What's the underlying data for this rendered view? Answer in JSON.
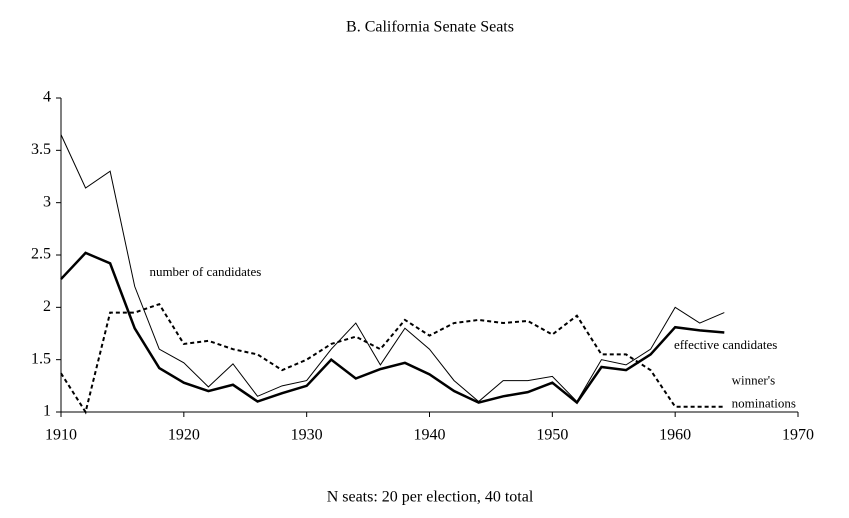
{
  "chart_data": {
    "type": "line",
    "title": "B. California Senate Seats",
    "x_label": "N seats: 20 per election, 40 total",
    "x": [
      1910,
      1912,
      1914,
      1916,
      1918,
      1920,
      1922,
      1924,
      1926,
      1928,
      1930,
      1932,
      1934,
      1936,
      1938,
      1940,
      1942,
      1944,
      1946,
      1948,
      1950,
      1952,
      1954,
      1956,
      1958,
      1960,
      1962,
      1964
    ],
    "series": [
      {
        "color": "#000000",
        "width": 1,
        "dash": "none",
        "values": [
          3.65,
          3.14,
          3.3,
          2.2,
          1.6,
          1.47,
          1.24,
          1.46,
          1.15,
          1.25,
          1.3,
          1.6,
          1.85,
          1.45,
          1.8,
          1.6,
          1.3,
          1.1,
          1.3,
          1.3,
          1.34,
          1.1,
          1.5,
          1.45,
          1.6,
          2.0,
          1.85,
          1.95
        ]
      },
      {
        "color": "#000000",
        "width": 2.5,
        "dash": "none",
        "values": [
          2.27,
          2.52,
          2.42,
          1.8,
          1.42,
          1.28,
          1.2,
          1.26,
          1.1,
          1.18,
          1.25,
          1.5,
          1.32,
          1.41,
          1.47,
          1.36,
          1.2,
          1.09,
          1.15,
          1.19,
          1.28,
          1.09,
          1.43,
          1.4,
          1.55,
          1.81,
          1.78,
          1.76
        ]
      },
      {
        "color": "#000000",
        "width": 2,
        "dash": "4 3",
        "values": [
          1.37,
          1.0,
          1.95,
          1.95,
          2.03,
          1.65,
          1.68,
          1.6,
          1.55,
          1.4,
          1.5,
          1.65,
          1.72,
          1.6,
          1.88,
          1.73,
          1.85,
          1.88,
          1.85,
          1.87,
          1.74,
          1.92,
          1.55,
          1.55,
          1.4,
          1.05,
          1.05,
          1.05
        ]
      }
    ],
    "annotations": [
      {
        "text": "number of candidates",
        "x": 1917.2,
        "y": 2.33
      },
      {
        "text": "effective candidates",
        "x": 1959.9,
        "y": 1.63
      },
      {
        "text": "winner's",
        "x": 1964.6,
        "y": 1.29
      },
      {
        "text": "nominations",
        "x": 1964.6,
        "y": 1.07
      }
    ],
    "xlim": [
      1910,
      1970
    ],
    "xticks": [
      1910,
      1920,
      1930,
      1940,
      1950,
      1960,
      1970
    ],
    "ylim": [
      1,
      4
    ],
    "yticks": [
      1,
      1.5,
      2,
      2.5,
      3,
      3.5,
      4
    ],
    "grid": false
  }
}
